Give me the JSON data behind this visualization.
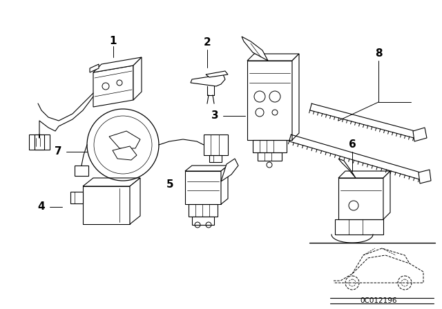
{
  "bg_color": "#ffffff",
  "diagram_color": "#000000",
  "watermark": "0C012196",
  "fig_width": 6.4,
  "fig_height": 4.48,
  "dpi": 100,
  "border_color": "#000000"
}
